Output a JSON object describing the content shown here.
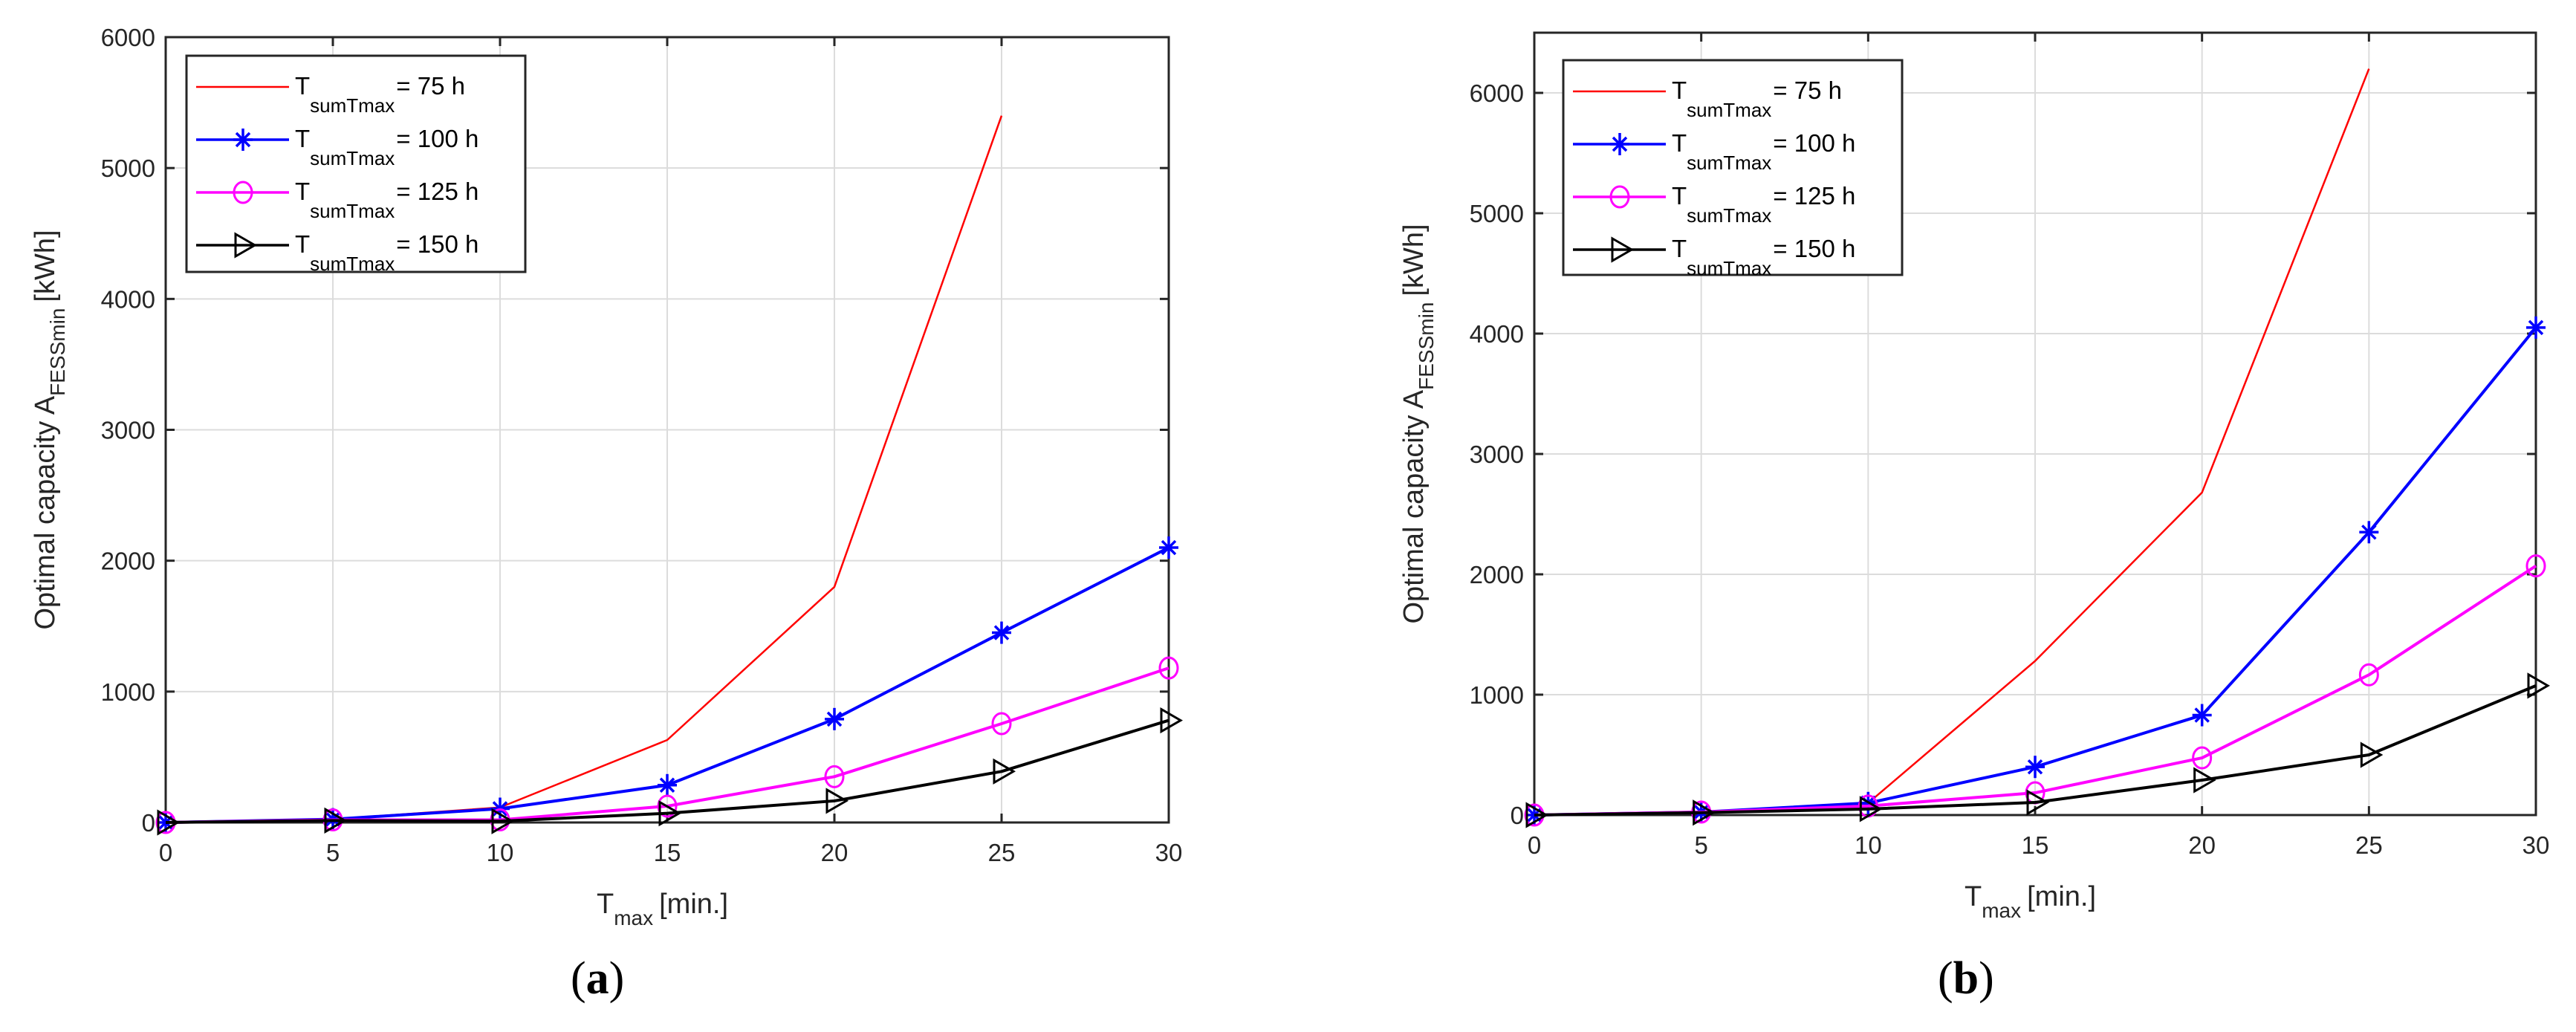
{
  "figure": {
    "panels": [
      {
        "id": "a",
        "caption_letter": "a"
      },
      {
        "id": "b",
        "caption_letter": "b"
      }
    ]
  },
  "legend": {
    "base": "T",
    "subscript": "sumTmax",
    "entries": [
      "= 75 h",
      "= 100 h",
      "= 125 h",
      "= 150 h"
    ]
  },
  "axes": {
    "ylabel_main": "Optimal capacity A",
    "ylabel_sub": "FESSmin",
    "ylabel_unit": "[kWh]",
    "xlabel_main": "T",
    "xlabel_sub": "max",
    "xlabel_unit": "[min.]"
  },
  "chart_data": [
    {
      "type": "line",
      "panel": "(a)",
      "title": "",
      "xlabel": "T_max [min.]",
      "ylabel": "Optimal capacity A_FESSmin [kWh]",
      "x": [
        0,
        5,
        10,
        15,
        20,
        25,
        30
      ],
      "xlim": [
        0,
        30
      ],
      "ylim": [
        0,
        6000
      ],
      "xticks": [
        0,
        5,
        10,
        15,
        20,
        25,
        30
      ],
      "yticks": [
        0,
        1000,
        2000,
        3000,
        4000,
        5000,
        6000
      ],
      "grid": true,
      "legend_position": "upper left",
      "series": [
        {
          "name": "T_sumTmax = 75 h",
          "color": "#ff0000",
          "marker": "none",
          "values": [
            0,
            25,
            115,
            630,
            1800,
            5400,
            null
          ]
        },
        {
          "name": "T_sumTmax = 100 h",
          "color": "#0000ff",
          "marker": "asterisk",
          "values": [
            0,
            25,
            105,
            285,
            790,
            1450,
            2100
          ]
        },
        {
          "name": "T_sumTmax = 125 h",
          "color": "#ff00ff",
          "marker": "circle",
          "values": [
            0,
            20,
            20,
            125,
            350,
            755,
            1180
          ]
        },
        {
          "name": "T_sumTmax = 150 h",
          "color": "#000000",
          "marker": "triangle-right",
          "values": [
            0,
            15,
            10,
            70,
            165,
            390,
            780
          ]
        }
      ]
    },
    {
      "type": "line",
      "panel": "(b)",
      "title": "",
      "xlabel": "T_max [min.]",
      "ylabel": "Optimal capacity A_FESSmin [kWh]",
      "x": [
        0,
        5,
        10,
        15,
        20,
        25,
        30
      ],
      "xlim": [
        0,
        30
      ],
      "ylim": [
        0,
        6500
      ],
      "xticks": [
        0,
        5,
        10,
        15,
        20,
        25,
        30
      ],
      "yticks": [
        0,
        1000,
        2000,
        3000,
        4000,
        5000,
        6000
      ],
      "grid": true,
      "legend_position": "upper left",
      "series": [
        {
          "name": "T_sumTmax = 75 h",
          "color": "#ff0000",
          "marker": "none",
          "values": [
            0,
            25,
            100,
            1280,
            2680,
            6200,
            null
          ]
        },
        {
          "name": "T_sumTmax = 100 h",
          "color": "#0000ff",
          "marker": "asterisk",
          "values": [
            0,
            25,
            100,
            400,
            830,
            2350,
            4050
          ]
        },
        {
          "name": "T_sumTmax = 125 h",
          "color": "#ff00ff",
          "marker": "circle",
          "values": [
            0,
            25,
            75,
            185,
            475,
            1165,
            2070
          ]
        },
        {
          "name": "T_sumTmax = 150 h",
          "color": "#000000",
          "marker": "triangle-right",
          "values": [
            0,
            20,
            50,
            105,
            290,
            500,
            1075
          ]
        }
      ]
    }
  ]
}
